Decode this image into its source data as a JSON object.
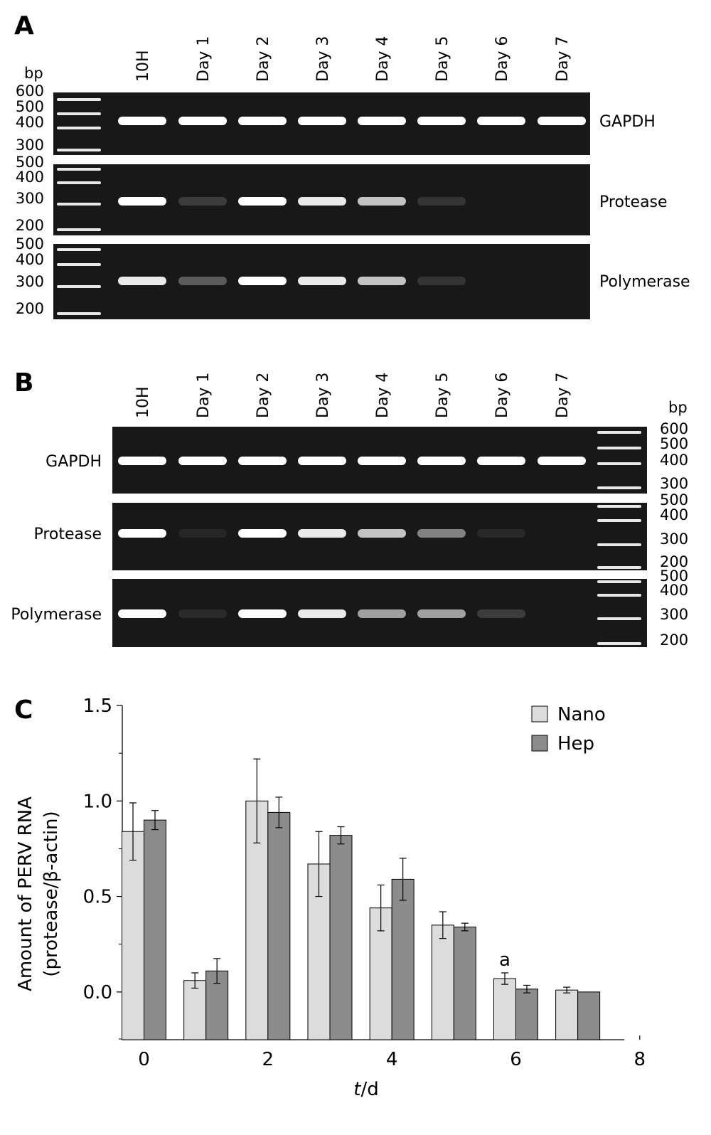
{
  "panelA": {
    "letter": "A",
    "bp_label": "bp",
    "lanes": [
      "10H",
      "Day 1",
      "Day 2",
      "Day 3",
      "Day 4",
      "Day 5",
      "Day 6",
      "Day 7"
    ],
    "gels": [
      {
        "gene": "GAPDH",
        "ladder": [
          "600",
          "500",
          "400",
          "300"
        ],
        "band_intensity": [
          1,
          1,
          1,
          1,
          1,
          1,
          1,
          1
        ]
      },
      {
        "gene": "Protease",
        "ladder": [
          "500",
          "400",
          "300",
          "200"
        ],
        "band_intensity": [
          1,
          0.35,
          1,
          0.95,
          0.85,
          0.3,
          0,
          0
        ]
      },
      {
        "gene": "Polymerase",
        "ladder": [
          "500",
          "400",
          "300",
          "200"
        ],
        "band_intensity": [
          0.95,
          0.5,
          1,
          0.95,
          0.85,
          0.3,
          0,
          0
        ]
      }
    ]
  },
  "panelB": {
    "letter": "B",
    "bp_label": "bp",
    "lanes": [
      "10H",
      "Day 1",
      "Day 2",
      "Day 3",
      "Day 4",
      "Day 5",
      "Day 6",
      "Day 7"
    ],
    "gels": [
      {
        "gene": "GAPDH",
        "ladder": [
          "600",
          "500",
          "400",
          "300"
        ],
        "band_intensity": [
          1,
          1,
          1,
          1,
          1,
          1,
          1,
          1
        ]
      },
      {
        "gene": "Protease",
        "ladder": [
          "500",
          "400",
          "300",
          "200"
        ],
        "band_intensity": [
          1,
          0.1,
          1,
          0.95,
          0.85,
          0.65,
          0.15,
          0
        ]
      },
      {
        "gene": "Polymerase",
        "ladder": [
          "500",
          "400",
          "300",
          "200"
        ],
        "band_intensity": [
          1,
          0.2,
          1,
          0.95,
          0.75,
          0.75,
          0.35,
          0
        ]
      }
    ]
  },
  "panelC": {
    "letter": "C"
  },
  "chart_data": {
    "type": "bar",
    "xlabel_italic": "t",
    "xlabel_rest": "/d",
    "ylabel_line1": "Amount of PERV RNA",
    "ylabel_line2": "(protease/β-actin)",
    "ylim": [
      -0.25,
      1.5
    ],
    "xlim": [
      -0.35,
      7.75
    ],
    "yticks": [
      0.0,
      0.5,
      1.0,
      1.5
    ],
    "ytick_labels": [
      "0.0",
      "0.5",
      "1.0",
      "1.5"
    ],
    "xticks": [
      0,
      2,
      4,
      6,
      8
    ],
    "xtick_labels": [
      "0",
      "2",
      "4",
      "6",
      "8"
    ],
    "x": [
      0,
      1,
      2,
      3,
      4,
      5,
      6,
      7
    ],
    "series": [
      {
        "name": "Nano",
        "color": "#dcdcdc",
        "values": [
          0.84,
          0.06,
          1.0,
          0.67,
          0.44,
          0.35,
          0.07,
          0.01
        ],
        "errors": [
          0.15,
          0.04,
          0.22,
          0.17,
          0.12,
          0.07,
          0.03,
          0.015
        ]
      },
      {
        "name": "Hep",
        "color": "#8c8c8c",
        "values": [
          0.9,
          0.11,
          0.94,
          0.82,
          0.59,
          0.34,
          0.015,
          0.0
        ],
        "errors": [
          0.05,
          0.065,
          0.08,
          0.045,
          0.11,
          0.02,
          0.02,
          0.0
        ]
      }
    ],
    "annotations": [
      {
        "text": "a",
        "x": 6,
        "series": "Nano"
      }
    ],
    "legend_position": "top-right"
  }
}
